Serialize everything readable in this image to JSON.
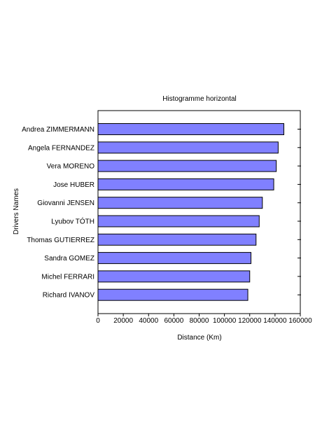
{
  "chart_data": {
    "type": "bar",
    "orientation": "horizontal",
    "title": "Histogramme horizontal",
    "xlabel": "Distance (Km)",
    "ylabel": "Drivers Names",
    "categories": [
      "Andrea ZIMMERMANN",
      "Angela FERNANDEZ",
      "Vera MORENO",
      "Jose HUBER",
      "Giovanni JENSEN",
      "Lyubov TÓTH",
      "Thomas GUTIERREZ",
      "Sandra GOMEZ",
      "Michel FERRARI",
      "Richard IVANOV"
    ],
    "values": [
      147000,
      142500,
      141000,
      139000,
      130000,
      127500,
      125000,
      121000,
      120000,
      118500
    ],
    "xlim": [
      0,
      160000
    ],
    "xticks": [
      0,
      20000,
      40000,
      60000,
      80000,
      100000,
      120000,
      140000,
      160000
    ],
    "grid": false,
    "bar_color": "#8080ff",
    "bar_edge_color": "#000000"
  }
}
